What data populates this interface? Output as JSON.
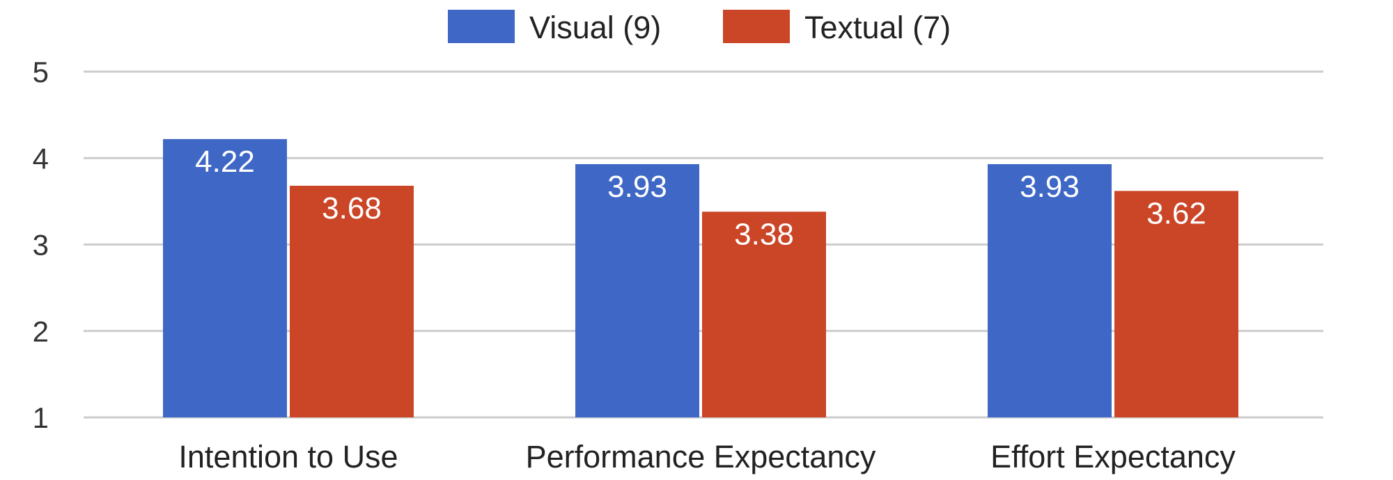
{
  "chart_data": {
    "type": "bar",
    "categories": [
      "Intention to Use",
      "Performance Expectancy",
      "Effort Expectancy"
    ],
    "series": [
      {
        "name": "Visual (9)",
        "values": [
          4.22,
          3.93,
          3.93
        ],
        "color": "#3f67c6"
      },
      {
        "name": "Textual (7)",
        "values": [
          3.68,
          3.38,
          3.62
        ],
        "color": "#cb4527"
      }
    ],
    "yticks": [
      1,
      2,
      3,
      4,
      5
    ],
    "ylim": [
      1,
      5
    ],
    "grid": true,
    "legend": "top-center",
    "title": "",
    "xlabel": "",
    "ylabel": ""
  }
}
